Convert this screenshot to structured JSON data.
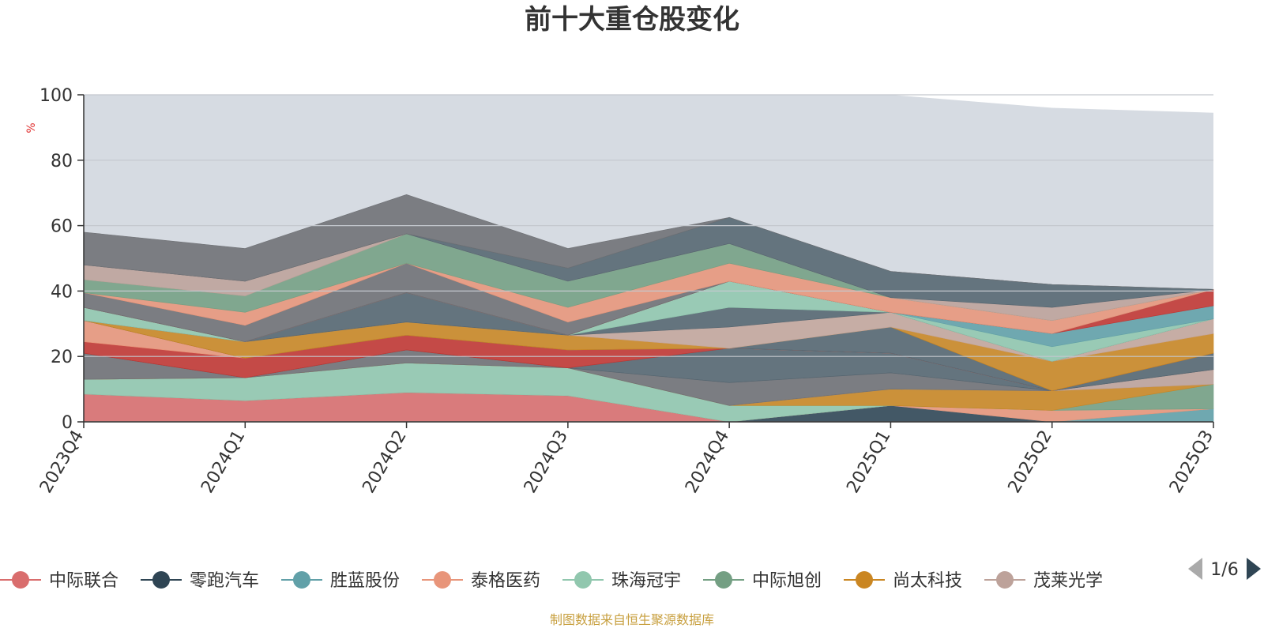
{
  "chart_data": {
    "type": "area",
    "stacked": true,
    "title": "前十大重仓股变化",
    "ylabel": "%",
    "ylim": [
      0,
      100
    ],
    "yticks": [
      0,
      20,
      40,
      60,
      80,
      100
    ],
    "x": [
      "2023Q4",
      "2024Q1",
      "2024Q2",
      "2024Q3",
      "2024Q4",
      "2025Q1",
      "2025Q2",
      "2025Q3"
    ],
    "grid": true,
    "legend_position": "bottom",
    "legend_page": "1/6",
    "source": "制图数据来自恒生聚源数据库",
    "background_area": {
      "color": "#d6dbe2",
      "values": [
        100,
        100,
        100,
        100,
        100,
        100,
        96,
        94.5
      ]
    },
    "series": [
      {
        "name": "中际联合",
        "color": "#d96d6d",
        "values": [
          8.5,
          6.5,
          9,
          8,
          0,
          0,
          0,
          0
        ]
      },
      {
        "name": "零跑汽车",
        "color": "#2f4554",
        "values": [
          0,
          0,
          0,
          0,
          0,
          5,
          0,
          0
        ]
      },
      {
        "name": "胜蓝股份",
        "color": "#61a0a8",
        "values": [
          0,
          0,
          0,
          0,
          0,
          0,
          0,
          4
        ]
      },
      {
        "name": "泰格医药",
        "color": "#e8957a",
        "values": [
          0,
          0,
          0,
          0,
          0,
          0,
          3.5,
          0
        ]
      },
      {
        "name": "珠海冠宇",
        "color": "#91c7ae",
        "values": [
          4.5,
          7,
          9,
          8.5,
          5,
          0,
          0,
          0
        ]
      },
      {
        "name": "中际旭创",
        "color": "#749f83",
        "values": [
          0,
          0,
          0,
          0,
          0,
          0,
          0,
          7.5
        ]
      },
      {
        "name": "尚太科技",
        "color": "#ca8622",
        "values": [
          0,
          0,
          0,
          0,
          0,
          5,
          6,
          0
        ]
      },
      {
        "name": "茂莱光学",
        "color": "#bda29a",
        "values": [
          0,
          0,
          0,
          0,
          0,
          0,
          0,
          4.5
        ]
      },
      {
        "name": "",
        "color": "#6e7074",
        "values": [
          8,
          0,
          4,
          0,
          7,
          5,
          0,
          0
        ]
      },
      {
        "name": "",
        "color": "#546570",
        "values": [
          0,
          0,
          0,
          0,
          10.5,
          6,
          0,
          5
        ]
      },
      {
        "name": "",
        "color": "#c23531",
        "values": [
          3.5,
          6,
          4.5,
          5.5,
          0,
          0,
          0,
          0
        ]
      },
      {
        "name": "",
        "color": "#e8957a",
        "values": [
          6.5,
          0,
          0,
          0,
          0,
          0,
          0,
          0
        ]
      },
      {
        "name": "",
        "color": "#546570",
        "values": [
          0,
          0,
          0,
          0,
          0,
          8,
          0,
          0
        ]
      },
      {
        "name": "",
        "color": "#ca8622",
        "values": [
          0,
          5,
          4,
          4.5,
          0,
          0,
          9,
          6
        ]
      },
      {
        "name": "",
        "color": "#c4a69c",
        "values": [
          0,
          0,
          0,
          0,
          6.5,
          4.5,
          0,
          4.5
        ]
      },
      {
        "name": "",
        "color": "#546570",
        "values": [
          0,
          0,
          9,
          0,
          6,
          0,
          0,
          0
        ]
      },
      {
        "name": "",
        "color": "#91c7ae",
        "values": [
          4,
          0,
          0,
          0,
          8,
          0,
          4.5,
          0
        ]
      },
      {
        "name": "",
        "color": "#61a0a8",
        "values": [
          0,
          0,
          0,
          0,
          0,
          0,
          4,
          4
        ]
      },
      {
        "name": "",
        "color": "#c23531",
        "values": [
          0,
          0,
          0,
          0,
          0,
          0,
          0,
          5
        ]
      },
      {
        "name": "",
        "color": "#6e7074",
        "values": [
          4.5,
          5,
          9,
          4,
          0,
          0,
          0,
          0
        ]
      },
      {
        "name": "",
        "color": "#e8957a",
        "values": [
          0,
          4,
          0,
          4.5,
          5.5,
          4.5,
          4,
          0
        ]
      },
      {
        "name": "",
        "color": "#749f83",
        "values": [
          4,
          5,
          9,
          8,
          6,
          0,
          0,
          0
        ]
      },
      {
        "name": "",
        "color": "#bda29a",
        "values": [
          4.5,
          4.5,
          0,
          0,
          0,
          0,
          4,
          0
        ]
      },
      {
        "name": "",
        "color": "#546570",
        "values": [
          0,
          0,
          0,
          4,
          8,
          8,
          7,
          0
        ]
      },
      {
        "name": "",
        "color": "#6e7074",
        "values": [
          10,
          10,
          12,
          6,
          0,
          0,
          0,
          0
        ]
      }
    ]
  }
}
